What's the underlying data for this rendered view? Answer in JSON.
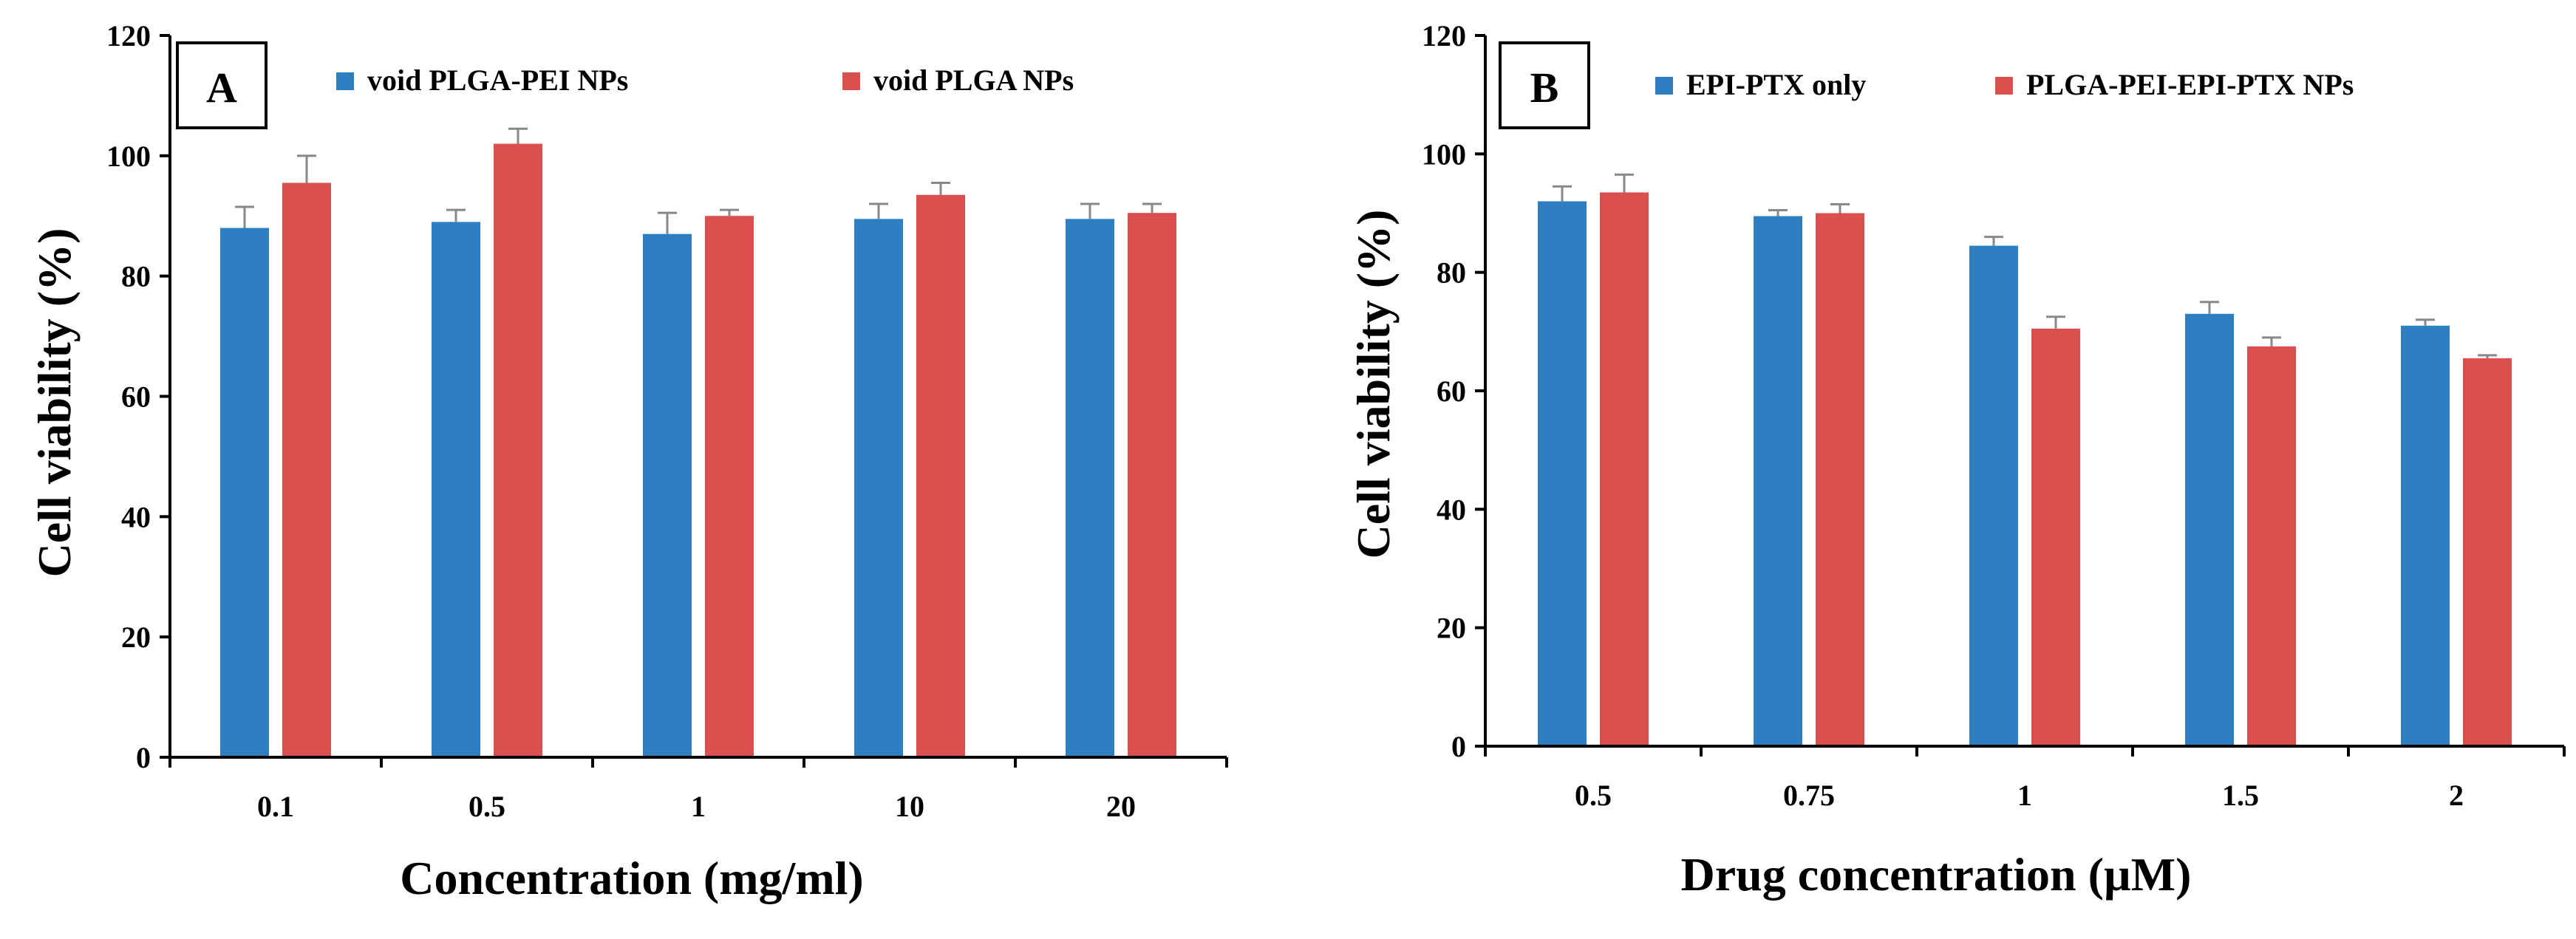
{
  "colors": {
    "series1": "#2e7fc1",
    "series2": "#d9504e",
    "axis": "#000000",
    "error": "#888888"
  },
  "chart_data": [
    {
      "type": "bar",
      "panel_label": "A",
      "title": "",
      "xlabel": "Concentration (mg/ml)",
      "ylabel": "Cell viability (%)",
      "ylim": [
        0,
        120
      ],
      "yticks": [
        "0",
        "20",
        "40",
        "60",
        "80",
        "100",
        "120"
      ],
      "categories": [
        "0.1",
        "0.5",
        "1",
        "10",
        "20"
      ],
      "legend_position": "top",
      "series": [
        {
          "name": "void PLGA-PEI NPs",
          "color": "#2e7fc1",
          "values": [
            88,
            89,
            87,
            89.5,
            89.5
          ],
          "errors": [
            3.5,
            2,
            3.5,
            2.5,
            2.5
          ]
        },
        {
          "name": "void PLGA NPs",
          "color": "#d9504e",
          "values": [
            95.5,
            102,
            90,
            93.5,
            90.5
          ],
          "errors": [
            4.5,
            2.5,
            1,
            2,
            1.5
          ]
        }
      ]
    },
    {
      "type": "bar",
      "panel_label": "B",
      "title": "",
      "xlabel": "Drug concentration (µM)",
      "ylabel": "Cell viability (%)",
      "ylim": [
        0,
        120
      ],
      "yticks": [
        "0",
        "20",
        "40",
        "60",
        "80",
        "100",
        "120"
      ],
      "categories": [
        "0.5",
        "0.75",
        "1",
        "1.5",
        "2"
      ],
      "legend_position": "top",
      "series": [
        {
          "name": "EPI-PTX only",
          "color": "#2e7fc1",
          "values": [
            92,
            89.5,
            84.5,
            73,
            71
          ],
          "errors": [
            2.5,
            1,
            1.5,
            2,
            1
          ]
        },
        {
          "name": "PLGA-PEI-EPI-PTX NPs",
          "color": "#d9504e",
          "values": [
            93.5,
            90,
            70.5,
            67.5,
            65.5
          ],
          "errors": [
            3,
            1.5,
            2,
            1.5,
            0.5
          ]
        }
      ]
    }
  ]
}
